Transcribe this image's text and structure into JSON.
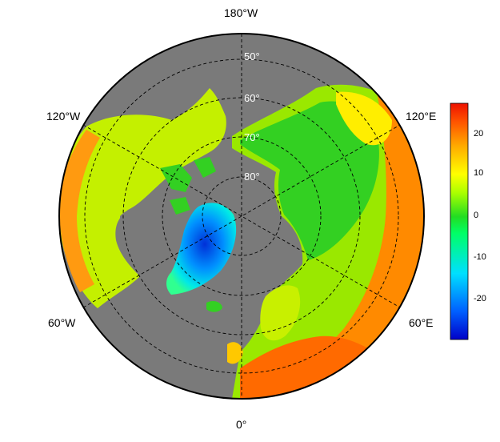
{
  "map": {
    "projection": "north-polar-stereographic",
    "ocean_color": "#7a7a7a",
    "border_color": "#000000",
    "graticule_color": "#000000",
    "lon_labels": {
      "top": "180°W",
      "upper_left": "120°W",
      "upper_right": "120°E",
      "lower_left": "60°W",
      "lower_right": "60°E",
      "bottom": "0°"
    },
    "lat_labels": [
      "50°",
      "60°",
      "70°",
      "80°"
    ]
  },
  "legend": {
    "ticks": [
      "20",
      "10",
      "0",
      "-10",
      "-20"
    ],
    "range": [
      -29,
      27
    ],
    "colors": [
      "#0000c8",
      "#0060ff",
      "#00e0ff",
      "#00ff66",
      "#22dd22",
      "#aaff00",
      "#ffff00",
      "#ffaa00",
      "#ff5500",
      "#ee1100"
    ]
  }
}
